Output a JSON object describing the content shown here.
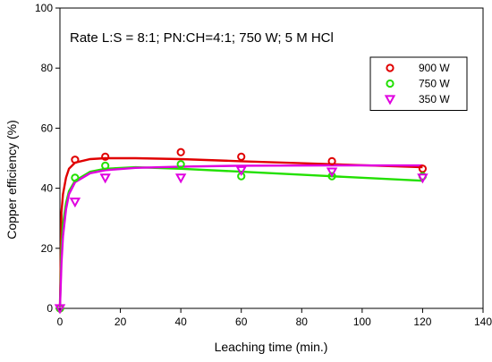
{
  "chart_data": {
    "type": "scatter",
    "title": "",
    "annotation": "Rate L:S = 8:1;  PN:CH=4:1; 750 W; 5 M HCl",
    "xlabel": "Leaching time (min.)",
    "ylabel": "Copper efficiency (%)",
    "xlim": [
      0,
      140
    ],
    "ylim": [
      0,
      100
    ],
    "xticks": [
      0,
      20,
      40,
      60,
      80,
      100,
      120,
      140
    ],
    "yticks": [
      0,
      20,
      40,
      60,
      80,
      100
    ],
    "grid": false,
    "legend_position": "top-right",
    "series": [
      {
        "name": "900 W",
        "color": "#e00000",
        "marker": "circle",
        "x": [
          0,
          5,
          15,
          40,
          60,
          90,
          120
        ],
        "y": [
          0,
          49.5,
          50.5,
          52,
          50.5,
          49,
          46.5
        ],
        "fit": [
          [
            0,
            0
          ],
          [
            0.5,
            32
          ],
          [
            1,
            38
          ],
          [
            2,
            43.5
          ],
          [
            3,
            46.5
          ],
          [
            5,
            48.5
          ],
          [
            10,
            49.7
          ],
          [
            15,
            50
          ],
          [
            25,
            50
          ],
          [
            40,
            49.7
          ],
          [
            60,
            49
          ],
          [
            90,
            48
          ],
          [
            120,
            47
          ]
        ]
      },
      {
        "name": "750 W",
        "color": "#22e000",
        "marker": "circle",
        "x": [
          0,
          5,
          15,
          40,
          60,
          90,
          120
        ],
        "y": [
          0,
          43.5,
          47.5,
          48,
          44,
          44,
          44
        ],
        "fit": [
          [
            0,
            0
          ],
          [
            0.5,
            20
          ],
          [
            1,
            28
          ],
          [
            2,
            35
          ],
          [
            3,
            39
          ],
          [
            5,
            42.5
          ],
          [
            10,
            45.5
          ],
          [
            15,
            46.5
          ],
          [
            25,
            47
          ],
          [
            40,
            46.5
          ],
          [
            60,
            45.5
          ],
          [
            90,
            44
          ],
          [
            120,
            42.5
          ]
        ]
      },
      {
        "name": "350 W",
        "color": "#e000e0",
        "marker": "triangle-down",
        "x": [
          0,
          5,
          15,
          40,
          60,
          90,
          120
        ],
        "y": [
          0,
          35.5,
          43.5,
          43.5,
          46,
          45.5,
          43.5
        ],
        "fit": [
          [
            0,
            0
          ],
          [
            0.5,
            15
          ],
          [
            1,
            24
          ],
          [
            2,
            33
          ],
          [
            3,
            38
          ],
          [
            5,
            42
          ],
          [
            10,
            45
          ],
          [
            15,
            46
          ],
          [
            25,
            46.8
          ],
          [
            40,
            47.2
          ],
          [
            60,
            47.5
          ],
          [
            90,
            47.6
          ],
          [
            120,
            47.6
          ]
        ]
      }
    ]
  }
}
